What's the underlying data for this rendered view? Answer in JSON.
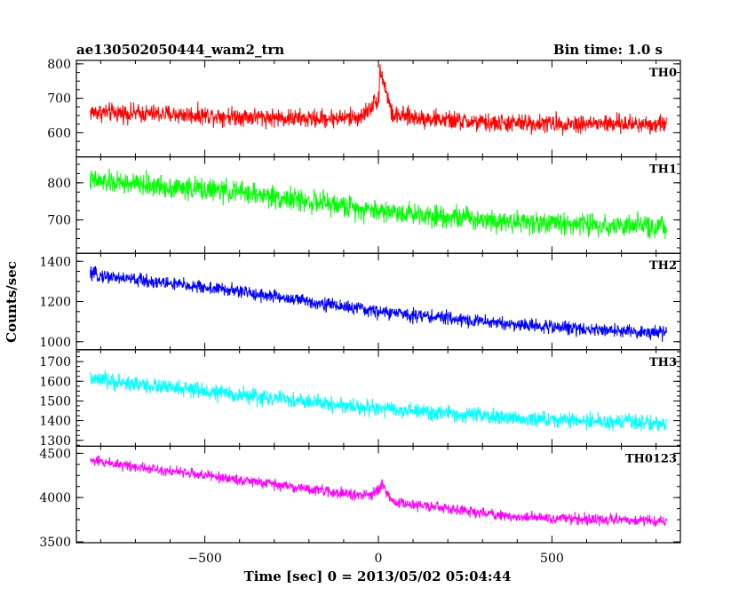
{
  "header": {
    "title": "ae130502050444_wam2_trn",
    "bin_time": "Bin time: 1.0 s"
  },
  "axes": {
    "xlabel": "Time [sec] 0 = 2013/05/02 05:04:44",
    "ylabel": "Counts/sec"
  },
  "chart_data": {
    "type": "line",
    "title": "ae130502050444_wam2_trn",
    "subtitle": "Bin time: 1.0 s",
    "xlabel": "Time [sec] 0 = 2013/05/02 05:04:44",
    "ylabel": "Counts/sec",
    "xlim": [
      -870,
      870
    ],
    "x_range_data": [
      -830,
      830
    ],
    "x_ticks": [
      -500,
      0,
      500
    ],
    "shared_x": true,
    "grid": false,
    "panels": [
      {
        "name": "TH0",
        "color": "#ff0000",
        "ylim": [
          530,
          810
        ],
        "y_ticks": [
          600,
          700,
          800
        ],
        "trend": {
          "x": [
            -830,
            -400,
            -200,
            -50,
            0,
            10,
            40,
            300,
            830
          ],
          "y": [
            660,
            648,
            640,
            645,
            700,
            770,
            650,
            628,
            625
          ]
        },
        "noise_amplitude": 40,
        "spike": {
          "x": 5,
          "peak": 800
        }
      },
      {
        "name": "TH1",
        "color": "#00ff00",
        "ylim": [
          610,
          870
        ],
        "y_ticks": [
          700,
          800
        ],
        "trend": {
          "x": [
            -830,
            -400,
            0,
            400,
            830
          ],
          "y": [
            805,
            775,
            725,
            695,
            680
          ]
        },
        "noise_amplitude": 45
      },
      {
        "name": "TH2",
        "color": "#0000ff",
        "ylim": [
          960,
          1440
        ],
        "y_ticks": [
          1000,
          1200,
          1400
        ],
        "trend": {
          "x": [
            -830,
            -400,
            0,
            400,
            830
          ],
          "y": [
            1335,
            1250,
            1150,
            1085,
            1040
          ]
        },
        "noise_amplitude": 50
      },
      {
        "name": "TH3",
        "color": "#00ffff",
        "ylim": [
          1270,
          1760
        ],
        "y_ticks": [
          1300,
          1400,
          1500,
          1600,
          1700
        ],
        "trend": {
          "x": [
            -830,
            -400,
            0,
            400,
            830
          ],
          "y": [
            1610,
            1530,
            1460,
            1410,
            1385
          ]
        },
        "noise_amplitude": 60
      },
      {
        "name": "TH0123",
        "color": "#ff00ff",
        "ylim": [
          3490,
          4580
        ],
        "y_ticks": [
          3500,
          4000,
          4500
        ],
        "trend": {
          "x": [
            -830,
            -400,
            -50,
            0,
            10,
            40,
            400,
            830
          ],
          "y": [
            4420,
            4200,
            4020,
            4060,
            4150,
            3950,
            3780,
            3730
          ]
        },
        "noise_amplitude": 90
      }
    ]
  }
}
